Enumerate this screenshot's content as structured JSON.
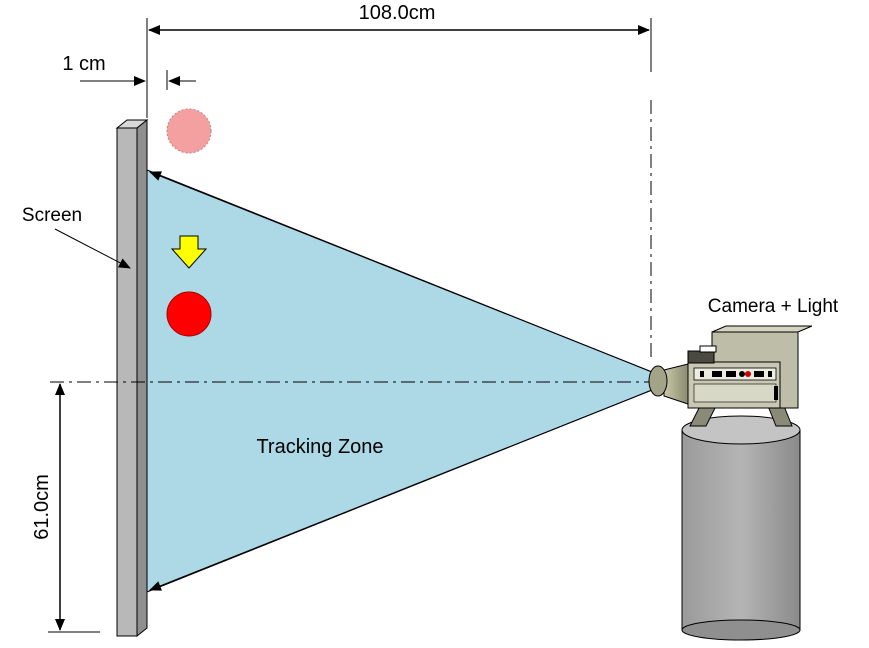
{
  "labels": {
    "width_dimension": "108.0cm",
    "gap_dimension": "1 cm",
    "screen": "Screen",
    "height_dimension": "61.0cm",
    "tracking_zone": "Tracking Zone",
    "camera": "Camera + Light"
  },
  "colors": {
    "tracking_zone_fill": "#add8e6",
    "ball_current": "#ff0000",
    "ball_previous": "#f4a0a0",
    "motion_arrow": "#ffff00",
    "screen_fill": "#b8b8b8",
    "camera_body": "#c8c8b4",
    "stand_fill": "#a9a9a9"
  }
}
